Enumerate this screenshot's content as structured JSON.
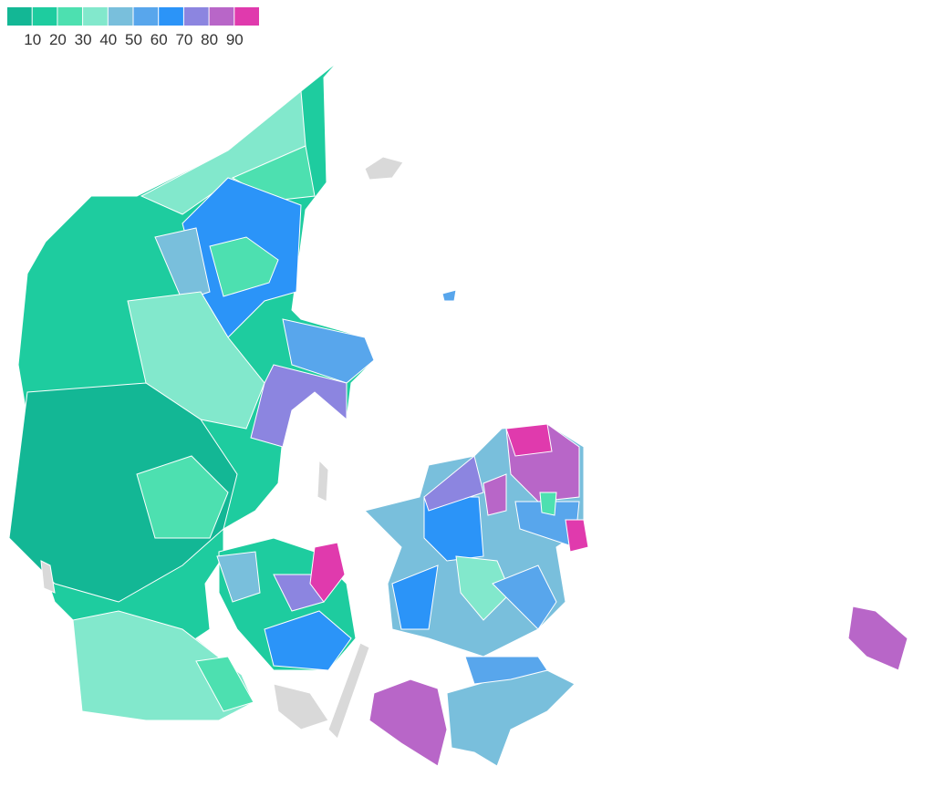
{
  "legend": {
    "colors": [
      "#13b795",
      "#1ecc9f",
      "#4de0b0",
      "#82e8cc",
      "#79bfdc",
      "#58a6ec",
      "#2b94f8",
      "#8c85e0",
      "#b866c8",
      "#e03aad"
    ],
    "ticks": [
      10,
      20,
      30,
      40,
      50,
      60,
      70,
      80,
      90
    ]
  }
}
